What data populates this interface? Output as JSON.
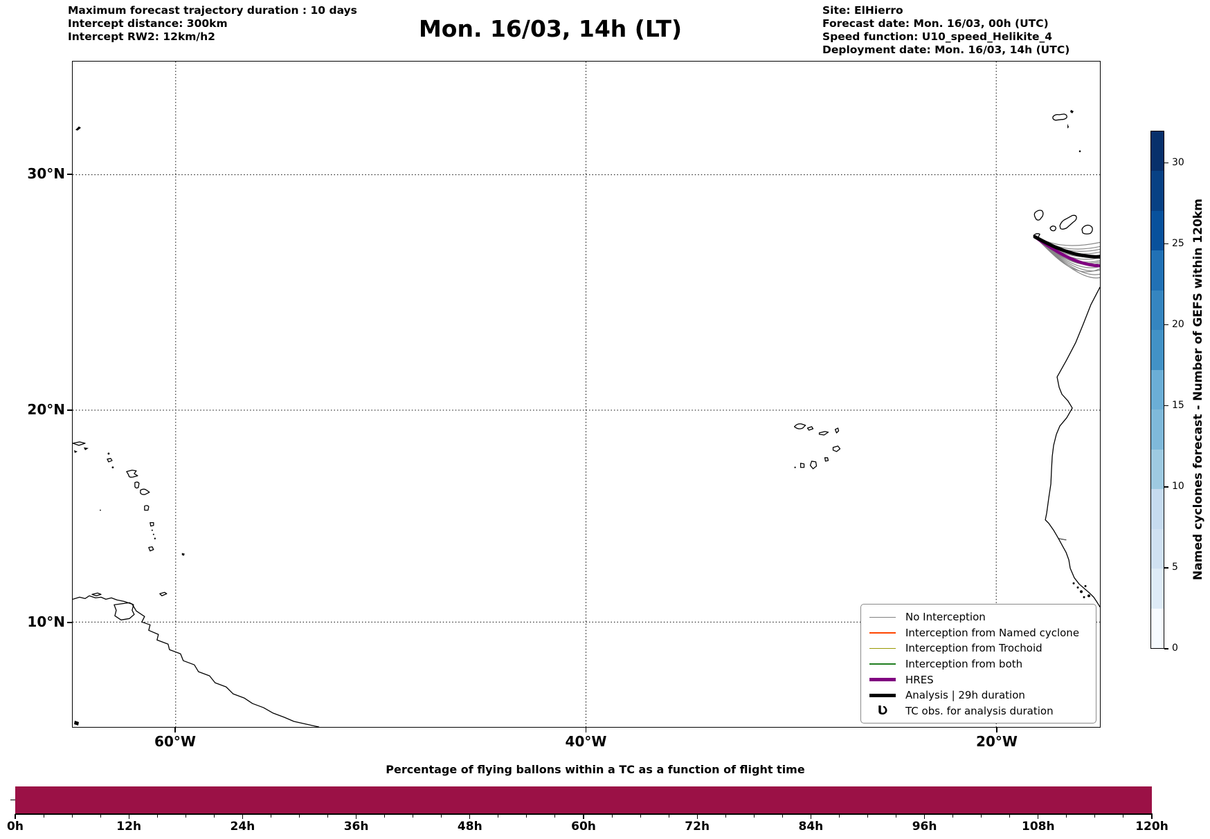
{
  "header": {
    "left_lines": [
      "Maximum forecast trajectory duration : 10 days",
      "Intercept distance: 300km",
      "Intercept RW2: 12km/h2"
    ],
    "title": "Mon. 16/03, 14h (LT)",
    "right_lines": [
      "Site: ElHierro",
      "Forecast date: Mon. 16/03, 00h (UTC)",
      "Speed function: U10_speed_Helikite_4",
      "Deployment date: Mon. 16/03, 14h (UTC)"
    ]
  },
  "colors": {
    "no_interception": "#808080",
    "interception_named": "#ff4500",
    "interception_trochoid": "#989800",
    "interception_both": "#1f7d1f",
    "hres": "#800080",
    "analysis": "#000000",
    "coastline": "#000000",
    "grid": "#000000",
    "bar": "#9b1146"
  },
  "map": {
    "lat_tick_labels": [
      "30°N",
      "20°N",
      "10°N"
    ],
    "lon_tick_labels": [
      "60°W",
      "40°W",
      "20°W"
    ],
    "legend_items": [
      {
        "label": "No Interception",
        "color_key": "no_interception",
        "thick": false
      },
      {
        "label": "Interception from Named cyclone",
        "color_key": "interception_named",
        "thick": false
      },
      {
        "label": "Interception from Trochoid",
        "color_key": "interception_trochoid",
        "thick": false
      },
      {
        "label": "Interception from both",
        "color_key": "interception_both",
        "thick": false
      },
      {
        "label": "HRES",
        "color_key": "hres",
        "thick": true
      },
      {
        "label": "Analysis | 29h duration",
        "color_key": "analysis",
        "thick": true
      },
      {
        "label": "TC obs. for analysis duration",
        "marker": "Ʋ"
      }
    ]
  },
  "colorbar": {
    "label": "Named cyclones forecast - Number of GEFS within 120km",
    "tick_values": [
      0,
      5,
      10,
      15,
      20,
      25,
      30
    ],
    "vmin": 0,
    "vmax": 32,
    "band_colors_top_to_bottom": [
      "#08306b",
      "#084184",
      "#08519c",
      "#2171b5",
      "#3585c0",
      "#4292c6",
      "#6baed6",
      "#7fb9da",
      "#9ecae1",
      "#c6dbef",
      "#d0e1f2",
      "#deebf7",
      "#f7fbff"
    ]
  },
  "bottom_chart": {
    "title": "Percentage of flying ballons within a TC as a function of flight time",
    "x_tick_labels": [
      "0h",
      "12h",
      "24h",
      "36h",
      "48h",
      "60h",
      "72h",
      "84h",
      "96h",
      "108h",
      "120h"
    ],
    "bar_value_percent": 100
  },
  "chart_data": [
    {
      "type": "line",
      "title": "Mon. 16/03, 14h (LT)",
      "description": "Balloon forecast trajectories deployed from ElHierro (Canary Islands), plotted on a map of the North Atlantic",
      "x_axis": {
        "kind": "longitude",
        "tick_labels": [
          "60°W",
          "40°W",
          "20°W"
        ],
        "range_deg_west": [
          65,
          15
        ]
      },
      "y_axis": {
        "kind": "latitude",
        "tick_labels": [
          "30°N",
          "20°N",
          "10°N"
        ],
        "range_deg_north": [
          5,
          34.5
        ]
      },
      "grid": "dotted, on both axes at labeled ticks",
      "legend_position": "lower right",
      "series": [
        {
          "name": "Analysis | 29h duration",
          "color": "#000000",
          "lon_lat_points": [
            [
              -18.1,
              27.6
            ],
            [
              -17.2,
              26.9
            ],
            [
              -16.2,
              26.6
            ],
            [
              -15.0,
              26.6
            ]
          ]
        },
        {
          "name": "HRES",
          "color": "#800080",
          "lon_lat_points": [
            [
              -18.1,
              27.6
            ],
            [
              -17.3,
              26.7
            ],
            [
              -16.2,
              26.2
            ],
            [
              -15.0,
              26.2
            ]
          ]
        },
        {
          "name": "No Interception (GEFS ensemble fan, ~14 members)",
          "color": "#808080",
          "note": "fan from ElHierro (-18.1, 27.6) spreading east to map edge at -15 lon, between 25.5N and 27.1N"
        }
      ],
      "visible_geography": [
        "Bermuda",
        "Madeira",
        "Selvagens",
        "Canary Islands",
        "Cape Verde",
        "Lesser Antilles",
        "Trinidad",
        "South America north coast",
        "West Africa coast"
      ]
    },
    {
      "type": "bar",
      "title": "Percentage of flying ballons within a TC as a function of flight time",
      "x_tick_labels": [
        "0h",
        "12h",
        "24h",
        "36h",
        "48h",
        "60h",
        "72h",
        "84h",
        "96h",
        "108h",
        "120h"
      ],
      "x_range_hours": [
        0,
        120
      ],
      "values": "constant 100% for all flight times 0h-120h (single full-height flat bar)",
      "bar_color": "#9b1146"
    },
    {
      "type": "heatmap",
      "title": "colorbar scale",
      "label": "Named cyclones forecast - Number of GEFS within 120km",
      "ticks": [
        0,
        5,
        10,
        15,
        20,
        25,
        30
      ],
      "range": [
        0,
        32
      ],
      "colormap": "Blues (discrete, light low to dark high)"
    }
  ]
}
